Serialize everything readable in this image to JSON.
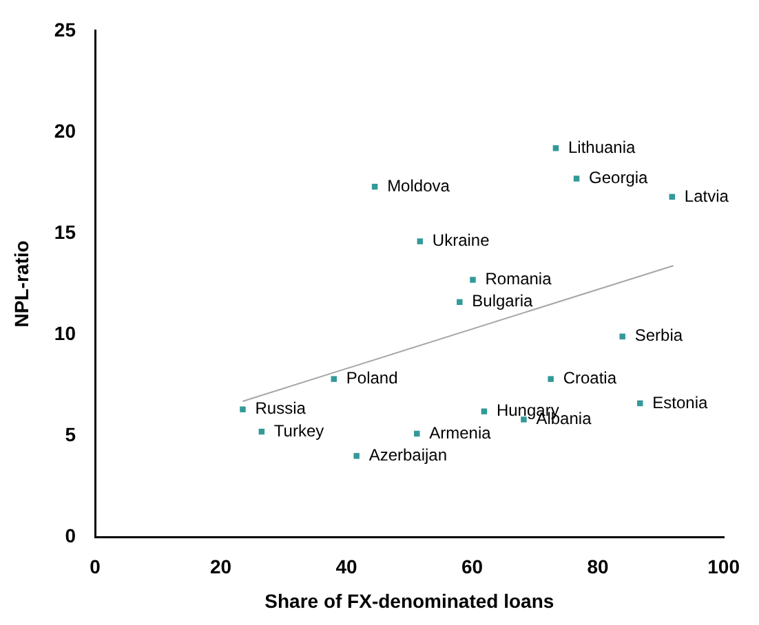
{
  "chart_data": {
    "type": "scatter",
    "xlabel": "Share of FX-denominated loans",
    "ylabel": "NPL-ratio",
    "xlim": [
      0,
      100
    ],
    "xticks": [
      0,
      20,
      40,
      60,
      80,
      100
    ],
    "ylim": [
      0,
      25
    ],
    "yticks": [
      0,
      5,
      10,
      15,
      20,
      25
    ],
    "grid": false,
    "legend": false,
    "marker": "square",
    "series": [
      {
        "color": "#339999",
        "x": [
          73.3,
          76.6,
          91.8,
          44.5,
          51.7,
          60.1,
          58.0,
          83.9,
          38.0,
          72.5,
          23.5,
          86.7,
          61.9,
          68.2,
          26.5,
          51.2,
          41.6
        ],
        "values": [
          19.2,
          17.7,
          16.8,
          17.3,
          14.6,
          12.7,
          11.6,
          9.9,
          7.8,
          7.8,
          6.3,
          6.6,
          6.2,
          5.8,
          5.2,
          5.1,
          4.0
        ]
      },
      {
        "type": "line",
        "color": "#a6a6a6",
        "marker": "none",
        "x": [
          23.5,
          92.0
        ],
        "values": [
          6.7,
          13.4
        ]
      }
    ],
    "annotations": [
      {
        "text": "Lithuania",
        "x": 73.3,
        "y": 19.2
      },
      {
        "text": "Georgia",
        "x": 76.6,
        "y": 17.7
      },
      {
        "text": "Latvia",
        "x": 91.8,
        "y": 16.8
      },
      {
        "text": "Moldova",
        "x": 44.5,
        "y": 17.3
      },
      {
        "text": "Ukraine",
        "x": 51.7,
        "y": 14.6
      },
      {
        "text": "Romania",
        "x": 60.1,
        "y": 12.7
      },
      {
        "text": "Bulgaria",
        "x": 58.0,
        "y": 11.6
      },
      {
        "text": "Serbia",
        "x": 83.9,
        "y": 9.9
      },
      {
        "text": "Poland",
        "x": 38.0,
        "y": 7.8
      },
      {
        "text": "Croatia",
        "x": 72.5,
        "y": 7.8
      },
      {
        "text": "Russia",
        "x": 23.5,
        "y": 6.3
      },
      {
        "text": "Estonia",
        "x": 86.7,
        "y": 6.6
      },
      {
        "text": "Hungary",
        "x": 61.9,
        "y": 6.2
      },
      {
        "text": "Albania",
        "x": 68.2,
        "y": 5.8
      },
      {
        "text": "Turkey",
        "x": 26.5,
        "y": 5.2
      },
      {
        "text": "Armenia",
        "x": 51.2,
        "y": 5.1
      },
      {
        "text": "Azerbaijan",
        "x": 41.6,
        "y": 4.0
      }
    ]
  }
}
